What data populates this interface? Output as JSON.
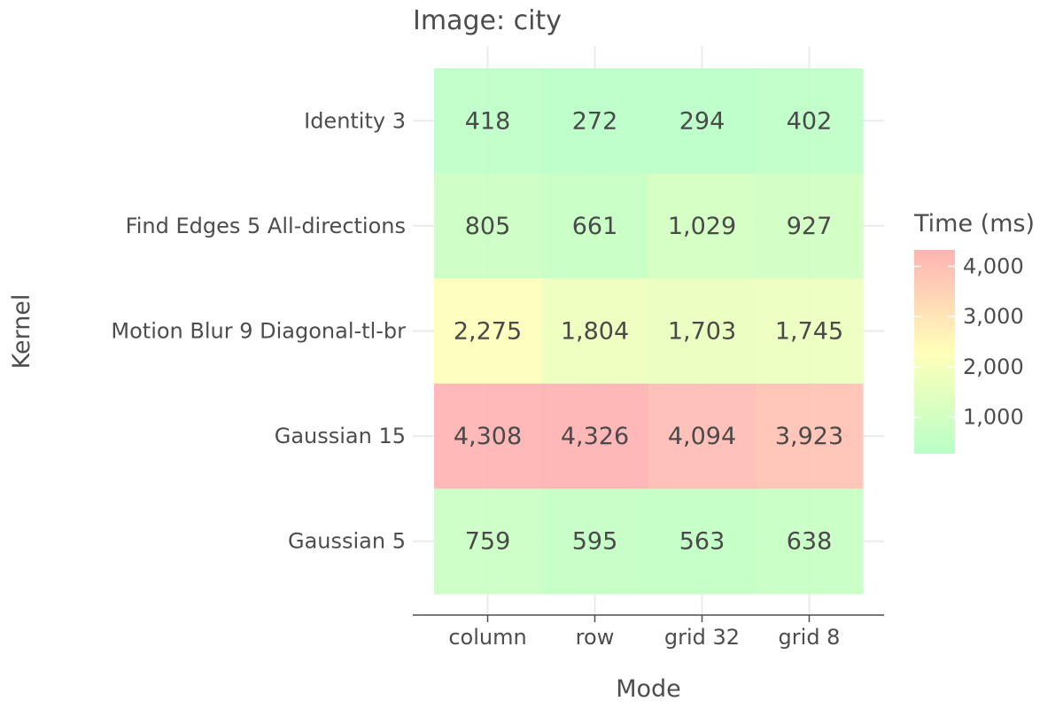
{
  "chart_data": {
    "type": "heatmap",
    "title": "Image: city",
    "xlabel": "Mode",
    "ylabel": "Kernel",
    "x_categories": [
      "column",
      "row",
      "grid 32",
      "grid 8"
    ],
    "y_categories": [
      "Identity 3",
      "Find Edges 5 All-directions",
      "Motion Blur 9 Diagonal-tl-br",
      "Gaussian 15",
      "Gaussian 5"
    ],
    "values": [
      [
        418,
        272,
        294,
        402
      ],
      [
        805,
        661,
        1029,
        927
      ],
      [
        2275,
        1804,
        1703,
        1745
      ],
      [
        4308,
        4326,
        4094,
        3923
      ],
      [
        759,
        595,
        563,
        638
      ]
    ],
    "cell_labels": [
      [
        "418",
        "272",
        "294",
        "402"
      ],
      [
        "805",
        "661",
        "1,029",
        "927"
      ],
      [
        "2,275",
        "1,804",
        "1,703",
        "1,745"
      ],
      [
        "4,308",
        "4,326",
        "4,094",
        "3,923"
      ],
      [
        "759",
        "595",
        "563",
        "638"
      ]
    ],
    "legend": {
      "title": "Time (ms)",
      "ticks": [
        1000,
        2000,
        3000,
        4000
      ],
      "tick_labels": [
        "1,000",
        "2,000",
        "3,000",
        "4,000"
      ],
      "range": [
        272,
        4326
      ],
      "colors": [
        "#b9ffc7",
        "#ffffb9",
        "#ffb3b3"
      ]
    },
    "grid": true
  }
}
